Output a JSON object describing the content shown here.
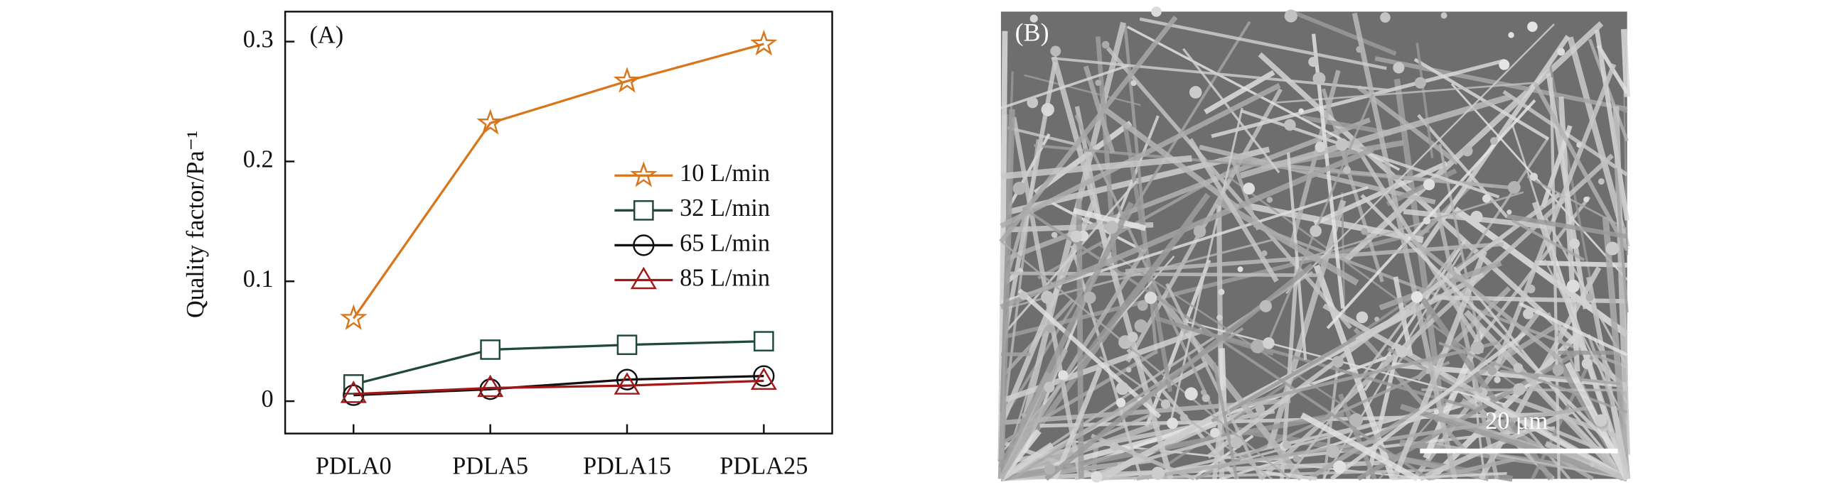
{
  "chart_data": [
    {
      "type": "line",
      "panel_label": "(A)",
      "y_label": "Quality factor/Pa⁻¹",
      "categories": [
        "PDLA0",
        "PDLA5",
        "PDLA15",
        "PDLA25"
      ],
      "ylim": [
        -0.027,
        0.325
      ],
      "yticks": [
        {
          "value": 0,
          "label": "0"
        },
        0.1,
        0.2,
        0.3
      ],
      "legend": "right",
      "series": [
        {
          "name": "10 L/min",
          "color": "#d9761c",
          "marker": "star",
          "values": [
            0.069,
            0.232,
            0.267,
            0.298
          ]
        },
        {
          "name": "32 L/min",
          "color": "#1f4a3a",
          "marker": "square",
          "values": [
            0.014,
            0.043,
            0.047,
            0.05
          ]
        },
        {
          "name": "65 L/min",
          "color": "#111111",
          "marker": "circle",
          "values": [
            0.005,
            0.01,
            0.018,
            0.021
          ]
        },
        {
          "name": "85 L/min",
          "color": "#a01818",
          "marker": "triangle",
          "values": [
            0.006,
            0.011,
            0.013,
            0.017
          ]
        }
      ]
    },
    {
      "type": "image",
      "panel_label": "(B)",
      "scale_bar": "20 μm"
    }
  ]
}
